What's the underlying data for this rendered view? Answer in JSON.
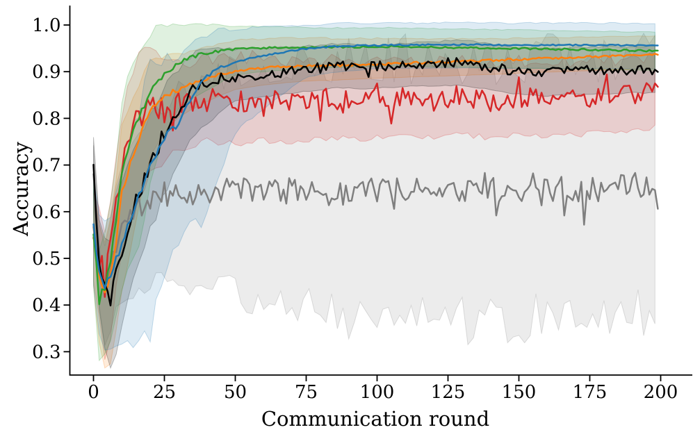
{
  "chart_data": {
    "type": "line",
    "title": "",
    "xlabel": "Communication round",
    "ylabel": "Accuracy",
    "xlim": [
      -8.3,
      211.2
    ],
    "ylim": [
      0.25,
      1.042
    ],
    "x_range": [
      0,
      199
    ],
    "xticks": [
      0,
      25,
      50,
      75,
      100,
      125,
      150,
      175,
      200
    ],
    "yticks": [
      "0.3",
      "0.4",
      "0.5",
      "0.6",
      "0.7",
      "0.8",
      "0.9",
      "1.0"
    ],
    "grid": false,
    "legend": "none",
    "band_alpha": 0.15,
    "anchor_x": [
      0,
      2,
      4,
      6,
      8,
      10,
      15,
      20,
      25,
      30,
      35,
      40,
      45,
      50,
      55,
      60,
      65,
      70,
      75,
      80,
      85,
      90,
      95,
      100,
      105,
      110,
      115,
      120,
      125,
      130,
      135,
      140,
      145,
      150,
      155,
      160,
      165,
      170,
      175,
      180,
      185,
      190,
      195,
      200
    ],
    "band_anchor_x": [
      0,
      5,
      10,
      15,
      20,
      25,
      30,
      40,
      50,
      75,
      100,
      150,
      200
    ],
    "series": [
      {
        "name": "gray",
        "color": "#7f7f7f",
        "seed": 11,
        "noise_amp": 0.026,
        "rise_noise": 0,
        "spike_amp": 0.055,
        "band_noise_amp": 0.055,
        "values": [
          0.68,
          0.5,
          0.44,
          0.48,
          0.53,
          0.57,
          0.6,
          0.625,
          0.635,
          0.64,
          0.635,
          0.645,
          0.645,
          0.65,
          0.645,
          0.647,
          0.65,
          0.645,
          0.653,
          0.65,
          0.645,
          0.643,
          0.65,
          0.645,
          0.643,
          0.647,
          0.651,
          0.647,
          0.652,
          0.643,
          0.646,
          0.65,
          0.645,
          0.642,
          0.65,
          0.647,
          0.651,
          0.646,
          0.652,
          0.648,
          0.653,
          0.66,
          0.655,
          0.653
        ],
        "band_hw_up": [
          0.06,
          0.1,
          0.13,
          0.15,
          0.17,
          0.19,
          0.21,
          0.23,
          0.25,
          0.27,
          0.28,
          0.28,
          0.28
        ],
        "band_hw_down": [
          0.08,
          0.13,
          0.16,
          0.17,
          0.18,
          0.18,
          0.19,
          0.2,
          0.22,
          0.26,
          0.28,
          0.28,
          0.28
        ]
      },
      {
        "name": "red",
        "color": "#d62728",
        "seed": 23,
        "noise_amp": 0.024,
        "rise_noise": 0.01,
        "spike_amp": 0.045,
        "band_noise_amp": 0.04,
        "values": [
          0.56,
          0.5,
          0.45,
          0.52,
          0.62,
          0.7,
          0.79,
          0.82,
          0.82,
          0.83,
          0.835,
          0.84,
          0.838,
          0.836,
          0.84,
          0.842,
          0.838,
          0.836,
          0.84,
          0.841,
          0.843,
          0.84,
          0.837,
          0.84,
          0.841,
          0.844,
          0.84,
          0.839,
          0.845,
          0.848,
          0.842,
          0.837,
          0.84,
          0.844,
          0.84,
          0.841,
          0.845,
          0.842,
          0.846,
          0.85,
          0.847,
          0.85,
          0.853,
          0.857
        ],
        "band_hw_up": [
          0.08,
          0.12,
          0.14,
          0.13,
          0.11,
          0.095,
          0.09,
          0.088,
          0.092,
          0.085,
          0.08,
          0.08,
          0.075
        ],
        "band_hw_down": [
          0.1,
          0.16,
          0.2,
          0.17,
          0.13,
          0.11,
          0.1,
          0.09,
          0.09,
          0.085,
          0.08,
          0.08,
          0.075
        ]
      },
      {
        "name": "orange",
        "color": "#ff7f0e",
        "seed": 41,
        "noise_amp": 0.0025,
        "rise_noise": 0.008,
        "spike_amp": 0,
        "band_noise_amp": 0.012,
        "values": [
          0.56,
          0.46,
          0.42,
          0.46,
          0.54,
          0.64,
          0.74,
          0.82,
          0.85,
          0.862,
          0.875,
          0.885,
          0.895,
          0.902,
          0.905,
          0.908,
          0.91,
          0.911,
          0.912,
          0.913,
          0.913,
          0.914,
          0.915,
          0.916,
          0.917,
          0.918,
          0.919,
          0.92,
          0.921,
          0.922,
          0.923,
          0.924,
          0.925,
          0.927,
          0.928,
          0.929,
          0.93,
          0.931,
          0.932,
          0.933,
          0.934,
          0.935,
          0.936,
          0.937
        ],
        "band_hw_up": [
          0.1,
          0.12,
          0.14,
          0.12,
          0.1,
          0.085,
          0.075,
          0.068,
          0.065,
          0.06,
          0.055,
          0.045,
          0.04
        ],
        "band_hw_down": [
          0.12,
          0.17,
          0.22,
          0.16,
          0.1,
          0.08,
          0.06,
          0.05,
          0.04,
          0.032,
          0.03,
          0.03,
          0.03
        ]
      },
      {
        "name": "black",
        "color": "#000000",
        "seed": 37,
        "noise_amp": 0.011,
        "rise_noise": 0.01,
        "spike_amp": 0.015,
        "band_noise_amp": 0.015,
        "values": [
          0.7,
          0.5,
          0.44,
          0.41,
          0.46,
          0.52,
          0.62,
          0.7,
          0.77,
          0.81,
          0.86,
          0.88,
          0.885,
          0.888,
          0.892,
          0.895,
          0.898,
          0.901,
          0.905,
          0.908,
          0.912,
          0.912,
          0.908,
          0.912,
          0.913,
          0.915,
          0.918,
          0.916,
          0.919,
          0.92,
          0.915,
          0.91,
          0.906,
          0.902,
          0.899,
          0.898,
          0.9,
          0.902,
          0.902,
          0.903,
          0.903,
          0.905,
          0.904,
          0.905
        ],
        "band_hw_up": [
          0.06,
          0.12,
          0.13,
          0.12,
          0.11,
          0.1,
          0.09,
          0.07,
          0.06,
          0.05,
          0.045,
          0.05,
          0.05
        ],
        "band_hw_down": [
          0.08,
          0.15,
          0.16,
          0.15,
          0.14,
          0.13,
          0.11,
          0.09,
          0.05,
          0.047,
          0.047,
          0.05,
          0.05
        ]
      },
      {
        "name": "green",
        "color": "#2ca02c",
        "seed": 53,
        "noise_amp": 0.002,
        "rise_noise": 0.008,
        "spike_amp": 0,
        "band_noise_amp": 0.02,
        "values": [
          0.56,
          0.41,
          0.44,
          0.5,
          0.58,
          0.68,
          0.79,
          0.855,
          0.895,
          0.92,
          0.932,
          0.94,
          0.945,
          0.948,
          0.95,
          0.951,
          0.9515,
          0.952,
          0.952,
          0.9525,
          0.9525,
          0.953,
          0.953,
          0.9535,
          0.954,
          0.9535,
          0.953,
          0.9525,
          0.952,
          0.9515,
          0.951,
          0.9505,
          0.95,
          0.9495,
          0.949,
          0.9485,
          0.948,
          0.9475,
          0.947,
          0.9465,
          0.946,
          0.9455,
          0.945,
          0.945
        ],
        "band_hw_up": [
          0.1,
          0.12,
          0.16,
          0.16,
          0.13,
          0.1,
          0.08,
          0.06,
          0.05,
          0.042,
          0.04,
          0.04,
          0.04
        ],
        "band_hw_down": [
          0.12,
          0.15,
          0.25,
          0.28,
          0.2,
          0.13,
          0.1,
          0.08,
          0.055,
          0.045,
          0.042,
          0.042,
          0.042
        ]
      },
      {
        "name": "blue",
        "color": "#1f77b4",
        "seed": 67,
        "noise_amp": 0.0015,
        "rise_noise": 0.012,
        "spike_amp": 0,
        "band_noise_amp": 0.03,
        "values": [
          0.56,
          0.47,
          0.44,
          0.46,
          0.5,
          0.53,
          0.62,
          0.7,
          0.76,
          0.79,
          0.85,
          0.89,
          0.91,
          0.92,
          0.928,
          0.934,
          0.94,
          0.945,
          0.949,
          0.952,
          0.954,
          0.9555,
          0.956,
          0.9565,
          0.957,
          0.957,
          0.9575,
          0.958,
          0.958,
          0.958,
          0.958,
          0.9575,
          0.957,
          0.957,
          0.957,
          0.957,
          0.957,
          0.957,
          0.957,
          0.957,
          0.9565,
          0.956,
          0.956,
          0.956
        ],
        "band_hw_up": [
          0.12,
          0.13,
          0.15,
          0.18,
          0.2,
          0.18,
          0.14,
          0.09,
          0.07,
          0.05,
          0.047,
          0.047,
          0.047
        ],
        "band_hw_down": [
          0.12,
          0.14,
          0.22,
          0.3,
          0.36,
          0.3,
          0.26,
          0.3,
          0.15,
          0.06,
          0.05,
          0.05,
          0.05
        ]
      }
    ]
  }
}
